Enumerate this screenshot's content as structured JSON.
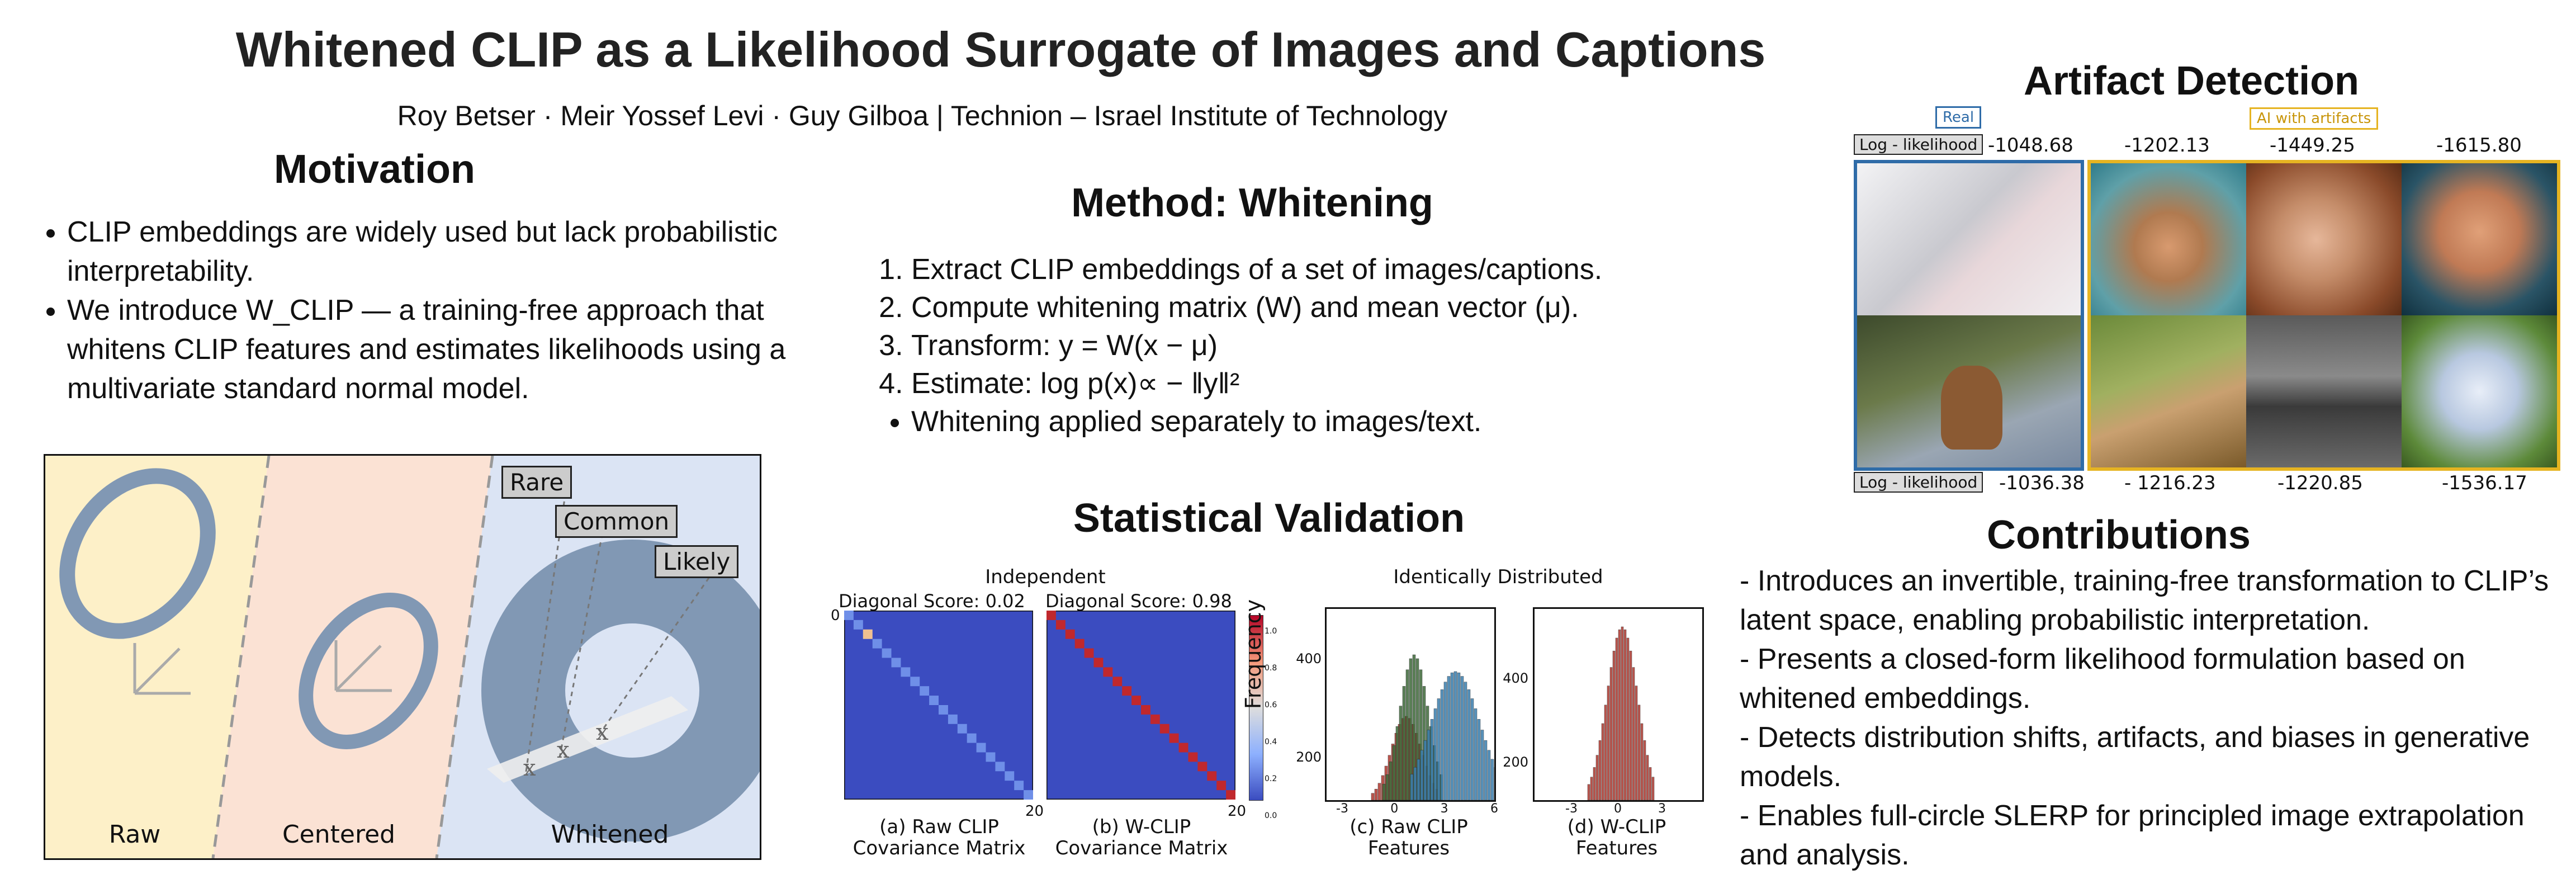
{
  "title": "Whitened CLIP as a Likelihood Surrogate of Images and Captions",
  "authors": "Roy Betser · Meir Yossef Levi · Guy Gilboa | Technion – Israel Institute of Technology",
  "motivation": {
    "heading": "Motivation",
    "bullets": [
      "CLIP embeddings are widely used but lack probabilistic interpretability.",
      "We introduce W_CLIP — a training-free approach that whitens CLIP features and estimates likelihoods using a multivariate standard normal model."
    ],
    "figure": {
      "labels": [
        "Raw",
        "Centered",
        "Whitened"
      ],
      "callouts": [
        "Rare",
        "Common",
        "Likely"
      ],
      "colors": {
        "raw_bg": "#fdf0c8",
        "centered_bg": "#fbe2d4",
        "whitened_bg": "#dbe4f4",
        "ring": "#8198b4"
      }
    }
  },
  "method": {
    "heading": "Method: Whitening",
    "steps": [
      "Extract CLIP embeddings of a set of images/captions.",
      "Compute whitening matrix (W) and mean vector (μ).",
      "Transform: y = W(x − μ)",
      "Estimate: log p(x)∝ − ‖y‖²"
    ],
    "note": "Whitening applied separately to images/text."
  },
  "validation": {
    "heading": "Statistical Validation",
    "independent_label": "Independent",
    "identical_label": "Identically Distributed",
    "raw_score": "Diagonal Score: 0.02",
    "w_score": "Diagonal Score: 0.98",
    "cap_a": "(a) Raw CLIP Covariance Matrix",
    "cap_b": "(b) W-CLIP Covariance Matrix",
    "cap_c": "(c) Raw CLIP Features",
    "cap_d": "(d) W-CLIP Features",
    "axis_zero": "0",
    "axis_twenty": "20",
    "freq_label": "Frequency",
    "colorbar_ticks": [
      "1.0",
      "0.8",
      "0.6",
      "0.4",
      "0.2",
      "0.0"
    ],
    "hist_c": {
      "yticks": [
        "400",
        "200",
        "0"
      ],
      "xticks": [
        "-3",
        "0",
        "3",
        "6"
      ]
    },
    "hist_d": {
      "yticks": [
        "400",
        "200",
        "0"
      ],
      "xticks": [
        "-3",
        "0",
        "3"
      ]
    },
    "colors": {
      "matrix_bg": "#3b4cc0",
      "diag_w": "#c0282d",
      "diag_raw": "#6f8fe8",
      "hist_blue": "#3a7fb0",
      "hist_green": "#3f6a3a",
      "hist_red": "#b0382e"
    }
  },
  "artifact": {
    "heading": "Artifact Detection",
    "tag_real": "Real",
    "tag_ai": "AI with artifacts",
    "ll_label": "Log - likelihood",
    "top_scores": [
      "-1048.68",
      "-1202.13",
      "-1449.25",
      "-1615.80"
    ],
    "bottom_scores": [
      "-1036.38",
      "- 1216.23",
      "-1220.85",
      "-1536.17"
    ],
    "colors": {
      "real": "#2f6ca8",
      "ai": "#e6b422"
    }
  },
  "contributions": {
    "heading": "Contributions",
    "items": [
      "- Introduces an invertible, training-free transformation to CLIP’s latent space, enabling probabilistic interpretation.",
      "- Presents a closed-form likelihood formulation based on whitened embeddings.",
      "- Detects distribution shifts, artifacts, and biases in generative models.",
      "- Enables full-circle SLERP for principled image extrapolation and analysis."
    ]
  }
}
